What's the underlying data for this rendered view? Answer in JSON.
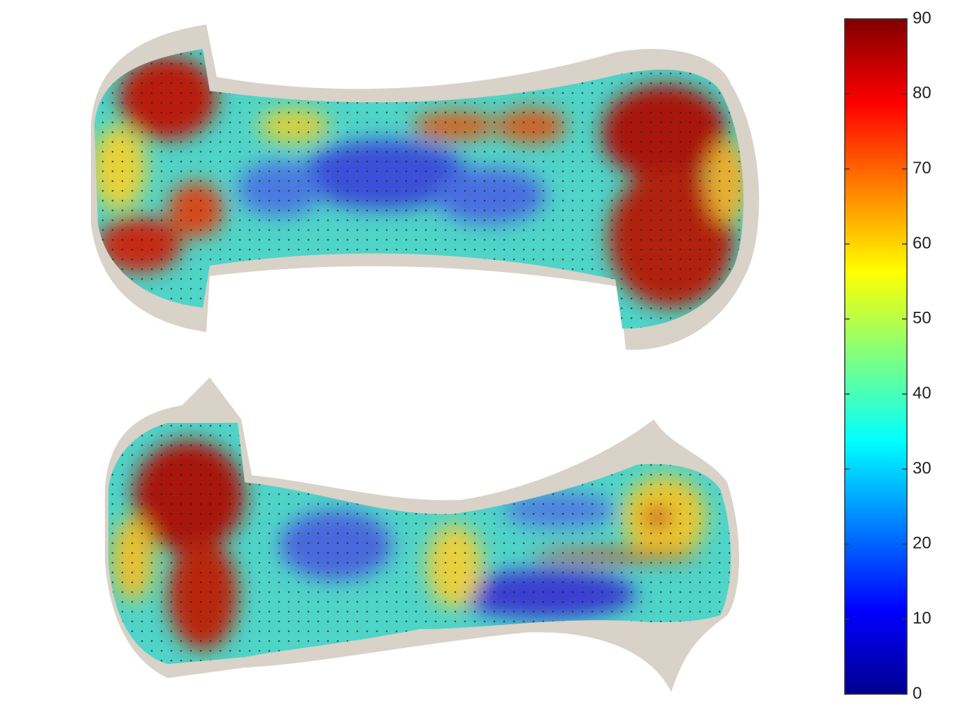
{
  "chart_data": {
    "type": "heatmap",
    "colormap": "jet",
    "clim": [
      0,
      90
    ],
    "cticks": [
      0,
      10,
      20,
      30,
      40,
      50,
      60,
      70,
      80,
      90
    ]
  }
}
